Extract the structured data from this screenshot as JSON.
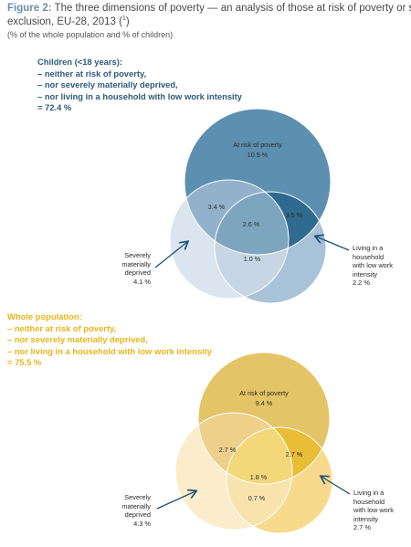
{
  "figure": {
    "label": "Figure 2:",
    "title_rest": " The three dimensions of poverty — an analysis of those at risk of poverty or social",
    "title_line2": "exclusion, EU-28, 2013 (",
    "footnote_ref": "1",
    "title_line2_end": ")",
    "subtitle": "(% of the whole population and % of children)"
  },
  "children": {
    "heading": [
      "Children (<18 years):",
      "–  neither at risk of poverty,",
      "–  nor severely materially deprived,",
      "–  nor living in a household with low work intensity",
      "=  72.4 %"
    ],
    "circles": {
      "risk": {
        "label": "At risk of poverty",
        "value": "10.9 %"
      },
      "deprived": {
        "lines": [
          "Severely",
          "materially",
          "deprived"
        ],
        "value": "4.1 %"
      },
      "work": {
        "lines": [
          "Living in a",
          "household",
          "with low work",
          "intensity"
        ],
        "value": "2.2 %"
      }
    },
    "overlaps": {
      "risk_deprived": "3.4 %",
      "risk_work": "3.5 %",
      "all": "2.6 %",
      "deprived_work": "1.0 %"
    },
    "colors": {
      "risk": "#5c8fb0",
      "deprived": "#dbe5ef",
      "work": "#a8c2d7",
      "risk_deprived": "#92b2cb",
      "risk_work": "#2f6a8f",
      "all": "#7ea5c0",
      "deprived_work": "#c6d6e4",
      "arrow": "#1f5276"
    }
  },
  "whole": {
    "heading": [
      "Whole population:",
      "–  neither at risk of poverty,",
      "–  nor severely materially deprived,",
      "–  nor living in a household with low work intensity",
      "=  75.5 %"
    ],
    "circles": {
      "risk": {
        "label": "At risk of poverty",
        "value": "9.4 %"
      },
      "deprived": {
        "lines": [
          "Severely",
          "materially",
          "deprived"
        ],
        "value": "4.3 %"
      },
      "work": {
        "lines": [
          "Living in a",
          "household",
          "with low work",
          "intensity"
        ],
        "value": "2.7 %"
      }
    },
    "overlaps": {
      "risk_deprived": "2.7 %",
      "risk_work": "2.7 %",
      "all": "1.8 %",
      "deprived_work": "0.7 %"
    },
    "colors": {
      "risk": "#e3c466",
      "deprived": "#fbeccb",
      "work": "#f7da8c",
      "risk_deprived": "#eed08a",
      "risk_work": "#e9bd35",
      "all": "#f3d87a",
      "deprived_work": "#f9e3ad",
      "arrow": "#1f5276"
    }
  }
}
